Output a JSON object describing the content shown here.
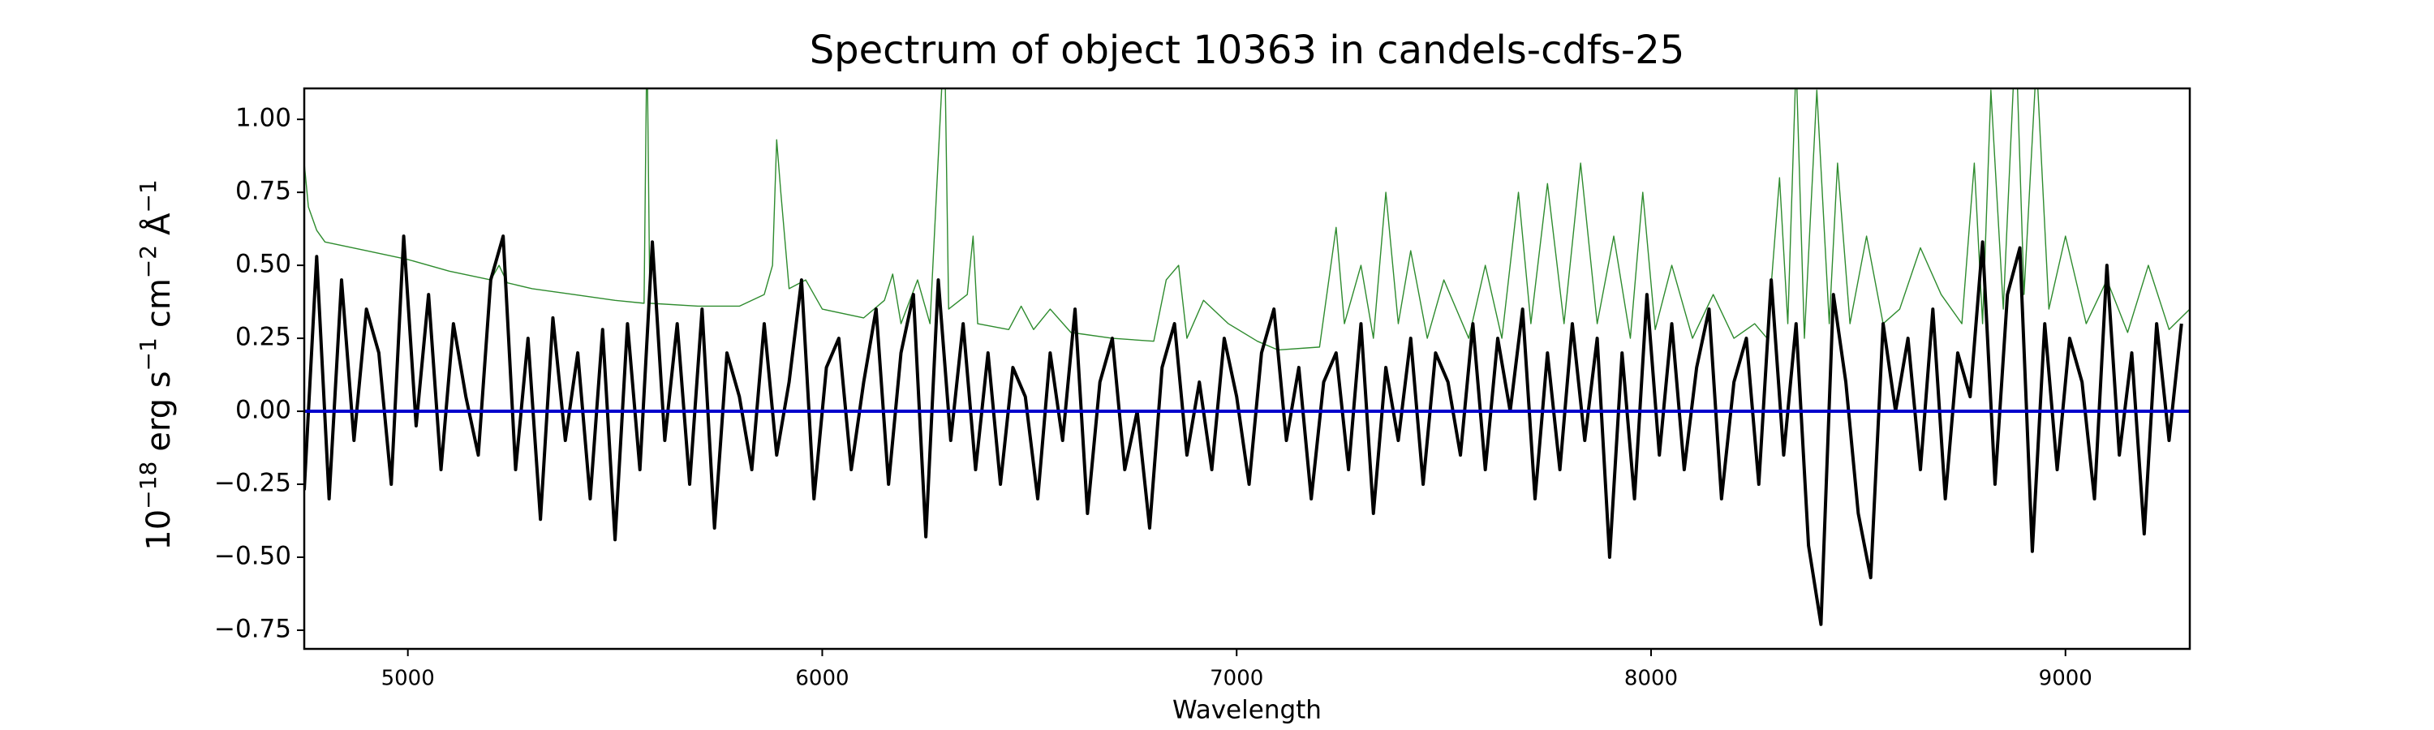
{
  "chart_data": {
    "type": "line",
    "title": "Spectrum of object 10363 in candels-cdfs-25",
    "xlabel": "Wavelength",
    "ylabel": [
      {
        "text": "10",
        "sup": "−18"
      },
      {
        "text": "erg s",
        "sup": "−1"
      },
      {
        "text": "cm",
        "sup": "−2"
      },
      {
        "text": "Å",
        "sup": "−1"
      }
    ],
    "xlim": [
      4750,
      9300
    ],
    "ylim": [
      -0.814,
      1.106
    ],
    "xticks": [
      5000,
      6000,
      7000,
      8000,
      9000
    ],
    "yticks": [
      {
        "value": -0.75,
        "label": "−0.75"
      },
      {
        "value": -0.5,
        "label": "−0.50"
      },
      {
        "value": -0.25,
        "label": "−0.25"
      },
      {
        "value": 0,
        "label": "0.00"
      },
      {
        "value": 0.25,
        "label": "0.25"
      },
      {
        "value": 0.5,
        "label": "0.50"
      },
      {
        "value": 0.75,
        "label": "0.75"
      },
      {
        "value": 1,
        "label": "1.00"
      }
    ],
    "series": [
      {
        "color": "#2e8b2e",
        "width": 1.4,
        "x": [
          4750,
          4760,
          4780,
          4800,
          4900,
          5000,
          5100,
          5200,
          5220,
          5240,
          5300,
          5400,
          5500,
          5570,
          5577,
          5584,
          5700,
          5800,
          5860,
          5880,
          5890,
          5900,
          5920,
          5960,
          6000,
          6100,
          6150,
          6170,
          6190,
          6230,
          6260,
          6295,
          6305,
          6350,
          6364,
          6375,
          6450,
          6480,
          6510,
          6550,
          6600,
          6700,
          6800,
          6830,
          6860,
          6880,
          6920,
          6980,
          7050,
          7100,
          7200,
          7240,
          7260,
          7300,
          7330,
          7360,
          7390,
          7420,
          7460,
          7500,
          7560,
          7600,
          7640,
          7680,
          7710,
          7750,
          7790,
          7830,
          7870,
          7910,
          7950,
          7980,
          8010,
          8050,
          8100,
          8150,
          8200,
          8250,
          8280,
          8310,
          8330,
          8350,
          8370,
          8400,
          8430,
          8450,
          8480,
          8520,
          8560,
          8600,
          8650,
          8700,
          8750,
          8780,
          8800,
          8820,
          8850,
          8880,
          8900,
          8930,
          8960,
          9000,
          9050,
          9100,
          9150,
          9200,
          9250,
          9300
        ],
        "values": [
          0.85,
          0.7,
          0.62,
          0.58,
          0.55,
          0.52,
          0.48,
          0.45,
          0.5,
          0.44,
          0.42,
          0.4,
          0.38,
          0.37,
          1.3,
          0.37,
          0.36,
          0.36,
          0.4,
          0.5,
          0.93,
          0.75,
          0.42,
          0.45,
          0.35,
          0.32,
          0.38,
          0.47,
          0.3,
          0.45,
          0.3,
          1.3,
          0.35,
          0.4,
          0.6,
          0.3,
          0.28,
          0.36,
          0.28,
          0.35,
          0.27,
          0.25,
          0.24,
          0.45,
          0.5,
          0.25,
          0.38,
          0.3,
          0.24,
          0.21,
          0.22,
          0.63,
          0.3,
          0.5,
          0.25,
          0.75,
          0.3,
          0.55,
          0.25,
          0.45,
          0.25,
          0.5,
          0.25,
          0.75,
          0.3,
          0.78,
          0.3,
          0.85,
          0.3,
          0.6,
          0.25,
          0.75,
          0.28,
          0.5,
          0.25,
          0.4,
          0.25,
          0.3,
          0.25,
          0.8,
          0.3,
          1.2,
          0.25,
          1.1,
          0.3,
          0.85,
          0.3,
          0.6,
          0.3,
          0.35,
          0.56,
          0.4,
          0.3,
          0.85,
          0.3,
          1.1,
          0.35,
          1.3,
          0.4,
          1.2,
          0.35,
          0.6,
          0.3,
          0.45,
          0.27,
          0.5,
          0.28,
          0.35
        ]
      },
      {
        "color": "#000000",
        "width": 4,
        "x": [
          4750,
          4780,
          4810,
          4840,
          4870,
          4900,
          4930,
          4960,
          4990,
          5020,
          5050,
          5080,
          5110,
          5140,
          5170,
          5200,
          5230,
          5260,
          5290,
          5320,
          5350,
          5380,
          5410,
          5440,
          5470,
          5500,
          5530,
          5560,
          5590,
          5620,
          5650,
          5680,
          5710,
          5740,
          5770,
          5800,
          5830,
          5860,
          5890,
          5920,
          5950,
          5980,
          6010,
          6040,
          6070,
          6100,
          6130,
          6160,
          6190,
          6220,
          6250,
          6280,
          6310,
          6340,
          6370,
          6400,
          6430,
          6460,
          6490,
          6520,
          6550,
          6580,
          6610,
          6640,
          6670,
          6700,
          6730,
          6760,
          6790,
          6820,
          6850,
          6880,
          6910,
          6940,
          6970,
          7000,
          7030,
          7060,
          7090,
          7120,
          7150,
          7180,
          7210,
          7240,
          7270,
          7300,
          7330,
          7360,
          7390,
          7420,
          7450,
          7480,
          7510,
          7540,
          7570,
          7600,
          7630,
          7660,
          7690,
          7720,
          7750,
          7780,
          7810,
          7840,
          7870,
          7900,
          7930,
          7960,
          7990,
          8020,
          8050,
          8080,
          8110,
          8140,
          8170,
          8200,
          8230,
          8260,
          8290,
          8320,
          8350,
          8380,
          8410,
          8440,
          8470,
          8500,
          8530,
          8560,
          8590,
          8620,
          8650,
          8680,
          8710,
          8740,
          8770,
          8800,
          8830,
          8860,
          8890,
          8920,
          8950,
          8980,
          9010,
          9040,
          9070,
          9100,
          9130,
          9160,
          9190,
          9220,
          9250,
          9280
        ],
        "values": [
          -0.27,
          0.53,
          -0.3,
          0.45,
          -0.1,
          0.35,
          0.2,
          -0.25,
          0.6,
          -0.05,
          0.4,
          -0.2,
          0.3,
          0.05,
          -0.15,
          0.45,
          0.6,
          -0.2,
          0.25,
          -0.37,
          0.32,
          -0.1,
          0.2,
          -0.3,
          0.28,
          -0.44,
          0.3,
          -0.2,
          0.58,
          -0.1,
          0.3,
          -0.25,
          0.35,
          -0.4,
          0.2,
          0.05,
          -0.2,
          0.3,
          -0.15,
          0.1,
          0.45,
          -0.3,
          0.15,
          0.25,
          -0.2,
          0.1,
          0.35,
          -0.25,
          0.2,
          0.4,
          -0.43,
          0.45,
          -0.1,
          0.3,
          -0.2,
          0.2,
          -0.25,
          0.15,
          0.05,
          -0.3,
          0.2,
          -0.1,
          0.35,
          -0.35,
          0.1,
          0.25,
          -0.2,
          0,
          -0.4,
          0.15,
          0.3,
          -0.15,
          0.1,
          -0.2,
          0.25,
          0.05,
          -0.25,
          0.2,
          0.35,
          -0.1,
          0.15,
          -0.3,
          0.1,
          0.2,
          -0.2,
          0.3,
          -0.35,
          0.15,
          -0.1,
          0.25,
          -0.25,
          0.2,
          0.1,
          -0.15,
          0.3,
          -0.2,
          0.25,
          0,
          0.35,
          -0.3,
          0.2,
          -0.2,
          0.3,
          -0.1,
          0.25,
          -0.5,
          0.2,
          -0.3,
          0.4,
          -0.15,
          0.3,
          -0.2,
          0.15,
          0.35,
          -0.3,
          0.1,
          0.25,
          -0.25,
          0.45,
          -0.15,
          0.3,
          -0.46,
          -0.73,
          0.4,
          0.1,
          -0.35,
          -0.57,
          0.3,
          0,
          0.25,
          -0.2,
          0.35,
          -0.3,
          0.2,
          0.05,
          0.58,
          -0.25,
          0.4,
          0.56,
          -0.48,
          0.3,
          -0.2,
          0.25,
          0.1,
          -0.3,
          0.5,
          -0.15,
          0.2,
          -0.42,
          0.3,
          -0.1,
          0.3
        ]
      },
      {
        "color": "#0000cc",
        "width": 4,
        "x": [
          4750,
          9300
        ],
        "values": [
          0,
          0
        ]
      }
    ]
  }
}
